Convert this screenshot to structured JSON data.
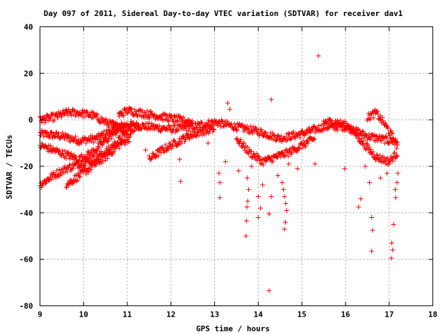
{
  "chart_data": {
    "type": "scatter",
    "title": "Day 097 of 2011, Sidereal Day-to-day VTEC variation (SDTVAR) for receiver dav1",
    "xlabel": "GPS time / hours",
    "ylabel": "SDTVAR / TECUs",
    "xlim": [
      9,
      18
    ],
    "ylim": [
      -80,
      40
    ],
    "xticks": [
      "9",
      "10",
      "11",
      "12",
      "13",
      "14",
      "15",
      "16",
      "17",
      "18"
    ],
    "yticks": [
      "40",
      "20",
      "0",
      "-20",
      "-40",
      "-60",
      "-80"
    ],
    "grid": true,
    "marker": "plus",
    "color": "#ff0000",
    "bands": [
      {
        "x": [
          9.0,
          9.5,
          9.9,
          10.3,
          10.8,
          11.0,
          11.5,
          12.0,
          12.5,
          13.0,
          13.5,
          14.0,
          14.5,
          15.0,
          15.5,
          16.0,
          16.5,
          17.0,
          17.2
        ],
        "y": [
          -6,
          -7,
          -9,
          -8,
          -3,
          -2,
          -3,
          -4,
          -3,
          -1,
          -3,
          -5,
          -8,
          -6,
          -3,
          -3,
          -7,
          -9,
          -9
        ]
      },
      {
        "x": [
          9.0,
          9.3,
          9.6,
          9.9,
          10.2,
          10.5,
          10.8,
          11.0
        ],
        "y": [
          0,
          1,
          3,
          3,
          2,
          -1,
          -3,
          -5
        ]
      },
      {
        "x": [
          9.0,
          9.3,
          9.6,
          9.9,
          10.2,
          10.5,
          10.8,
          11.0,
          11.3
        ],
        "y": [
          -28,
          -24,
          -21,
          -19,
          -17,
          -14,
          -9,
          -5,
          -2
        ]
      },
      {
        "x": [
          9.6,
          9.9,
          10.2,
          10.5,
          10.8,
          11.1
        ],
        "y": [
          -28,
          -24,
          -20,
          -16,
          -11,
          -7
        ]
      },
      {
        "x": [
          9.0,
          9.3,
          9.6,
          9.9,
          10.2,
          10.5,
          10.8
        ],
        "y": [
          -11,
          -13,
          -15,
          -17,
          -14,
          -9,
          -4
        ]
      },
      {
        "x": [
          11.5,
          11.8,
          12.1,
          12.4,
          12.7,
          13.0
        ],
        "y": [
          -17,
          -13,
          -10,
          -7,
          -5,
          -4
        ]
      },
      {
        "x": [
          10.8,
          11.0,
          11.3,
          11.6,
          11.9,
          12.2,
          12.5
        ],
        "y": [
          2,
          4,
          3,
          2,
          1,
          0,
          -1
        ]
      },
      {
        "x": [
          13.5,
          13.8,
          14.1,
          14.4,
          14.7,
          15.0,
          15.3
        ],
        "y": [
          -8,
          -14,
          -18,
          -16,
          -14,
          -11,
          -8
        ]
      },
      {
        "x": [
          15.5,
          15.8,
          16.1,
          16.4,
          16.7,
          17.0,
          17.2
        ],
        "y": [
          -1,
          -1,
          -3,
          -10,
          -16,
          -18,
          -14
        ]
      },
      {
        "x": [
          16.5,
          16.7,
          16.9,
          17.1,
          17.2
        ],
        "y": [
          1,
          3,
          -2,
          -8,
          -12
        ]
      }
    ],
    "outliers": [
      {
        "x": 15.38,
        "y": 27.5
      },
      {
        "x": 14.3,
        "y": 8.7
      },
      {
        "x": 13.3,
        "y": 7.2
      },
      {
        "x": 13.35,
        "y": 4.5
      },
      {
        "x": 14.25,
        "y": -73.5
      },
      {
        "x": 13.72,
        "y": -50
      },
      {
        "x": 13.73,
        "y": -43.5
      },
      {
        "x": 13.74,
        "y": -37.5
      },
      {
        "x": 13.76,
        "y": -35
      },
      {
        "x": 13.78,
        "y": -30
      },
      {
        "x": 13.75,
        "y": -25
      },
      {
        "x": 13.12,
        "y": -33.5
      },
      {
        "x": 13.12,
        "y": -27
      },
      {
        "x": 13.1,
        "y": -23
      },
      {
        "x": 12.22,
        "y": -26.5
      },
      {
        "x": 12.2,
        "y": -17
      },
      {
        "x": 14.0,
        "y": -42
      },
      {
        "x": 14.05,
        "y": -38
      },
      {
        "x": 14.0,
        "y": -33
      },
      {
        "x": 14.1,
        "y": -28
      },
      {
        "x": 14.25,
        "y": -40.5
      },
      {
        "x": 14.3,
        "y": -33
      },
      {
        "x": 14.6,
        "y": -47
      },
      {
        "x": 14.62,
        "y": -44
      },
      {
        "x": 14.65,
        "y": -39
      },
      {
        "x": 14.63,
        "y": -36
      },
      {
        "x": 14.6,
        "y": -33
      },
      {
        "x": 14.58,
        "y": -30
      },
      {
        "x": 14.55,
        "y": -27
      },
      {
        "x": 16.3,
        "y": -37.5
      },
      {
        "x": 16.35,
        "y": -34
      },
      {
        "x": 16.6,
        "y": -56.5
      },
      {
        "x": 16.62,
        "y": -47.5
      },
      {
        "x": 16.6,
        "y": -42
      },
      {
        "x": 17.05,
        "y": -59.5
      },
      {
        "x": 17.08,
        "y": -56
      },
      {
        "x": 17.06,
        "y": -53
      },
      {
        "x": 17.1,
        "y": -45
      },
      {
        "x": 17.15,
        "y": -33.5
      },
      {
        "x": 17.14,
        "y": -30
      },
      {
        "x": 17.18,
        "y": -27
      },
      {
        "x": 17.2,
        "y": -23
      },
      {
        "x": 15.98,
        "y": -21
      },
      {
        "x": 16.55,
        "y": -27
      },
      {
        "x": 16.8,
        "y": -25
      },
      {
        "x": 13.85,
        "y": -20
      },
      {
        "x": 14.45,
        "y": -24
      },
      {
        "x": 13.55,
        "y": -22
      },
      {
        "x": 14.9,
        "y": -21
      },
      {
        "x": 15.3,
        "y": -19
      },
      {
        "x": 11.42,
        "y": -13
      },
      {
        "x": 12.85,
        "y": -10
      },
      {
        "x": 13.25,
        "y": -18
      },
      {
        "x": 14.7,
        "y": -19
      },
      {
        "x": 16.95,
        "y": -23
      },
      {
        "x": 16.45,
        "y": -20
      }
    ]
  }
}
